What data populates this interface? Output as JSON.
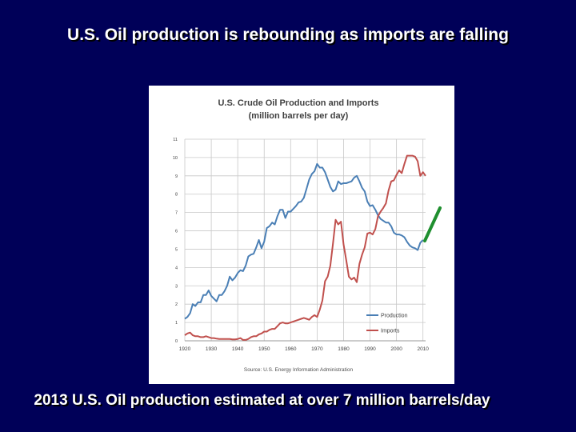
{
  "slide": {
    "title": "U.S.  Oil production is rebounding as imports are falling",
    "caption": "2013 U.S.  Oil production estimated at over 7 million barrels/day",
    "annotation_color": "#1f8f2f"
  },
  "chart_data": {
    "type": "line",
    "title": "U.S. Crude Oil Production and Imports",
    "subtitle": "(million barrels per day)",
    "source": "Source: U.S. Energy Information Administration",
    "xlim": [
      1920,
      2011
    ],
    "ylim": [
      0,
      11
    ],
    "xticks": [
      1920,
      1930,
      1940,
      1950,
      1960,
      1970,
      1980,
      1990,
      2000,
      2010
    ],
    "yticks": [
      0,
      1,
      2,
      3,
      4,
      5,
      6,
      7,
      8,
      9,
      10,
      11
    ],
    "grid": true,
    "legend_position": "bottom-right",
    "series": [
      {
        "name": "Production",
        "color": "#4a7fb5",
        "points": [
          [
            1920,
            1.2
          ],
          [
            1921,
            1.3
          ],
          [
            1922,
            1.5
          ],
          [
            1923,
            2.0
          ],
          [
            1924,
            1.9
          ],
          [
            1925,
            2.1
          ],
          [
            1926,
            2.1
          ],
          [
            1927,
            2.5
          ],
          [
            1928,
            2.5
          ],
          [
            1929,
            2.75
          ],
          [
            1930,
            2.45
          ],
          [
            1931,
            2.3
          ],
          [
            1932,
            2.15
          ],
          [
            1933,
            2.5
          ],
          [
            1934,
            2.5
          ],
          [
            1935,
            2.7
          ],
          [
            1936,
            3.0
          ],
          [
            1937,
            3.5
          ],
          [
            1938,
            3.3
          ],
          [
            1939,
            3.45
          ],
          [
            1940,
            3.7
          ],
          [
            1941,
            3.85
          ],
          [
            1942,
            3.8
          ],
          [
            1943,
            4.1
          ],
          [
            1944,
            4.6
          ],
          [
            1945,
            4.7
          ],
          [
            1946,
            4.75
          ],
          [
            1947,
            5.1
          ],
          [
            1948,
            5.5
          ],
          [
            1949,
            5.05
          ],
          [
            1950,
            5.4
          ],
          [
            1951,
            6.15
          ],
          [
            1952,
            6.25
          ],
          [
            1953,
            6.45
          ],
          [
            1954,
            6.35
          ],
          [
            1955,
            6.8
          ],
          [
            1956,
            7.15
          ],
          [
            1957,
            7.15
          ],
          [
            1958,
            6.7
          ],
          [
            1959,
            7.05
          ],
          [
            1960,
            7.05
          ],
          [
            1961,
            7.2
          ],
          [
            1962,
            7.35
          ],
          [
            1963,
            7.55
          ],
          [
            1964,
            7.6
          ],
          [
            1965,
            7.8
          ],
          [
            1966,
            8.3
          ],
          [
            1967,
            8.8
          ],
          [
            1968,
            9.1
          ],
          [
            1969,
            9.25
          ],
          [
            1970,
            9.65
          ],
          [
            1971,
            9.45
          ],
          [
            1972,
            9.45
          ],
          [
            1973,
            9.2
          ],
          [
            1974,
            8.8
          ],
          [
            1975,
            8.4
          ],
          [
            1976,
            8.15
          ],
          [
            1977,
            8.25
          ],
          [
            1978,
            8.7
          ],
          [
            1979,
            8.55
          ],
          [
            1980,
            8.6
          ],
          [
            1981,
            8.6
          ],
          [
            1982,
            8.65
          ],
          [
            1983,
            8.7
          ],
          [
            1984,
            8.9
          ],
          [
            1985,
            9.0
          ],
          [
            1986,
            8.7
          ],
          [
            1987,
            8.35
          ],
          [
            1988,
            8.15
          ],
          [
            1989,
            7.6
          ],
          [
            1990,
            7.35
          ],
          [
            1991,
            7.4
          ],
          [
            1992,
            7.15
          ],
          [
            1993,
            6.85
          ],
          [
            1994,
            6.65
          ],
          [
            1995,
            6.55
          ],
          [
            1996,
            6.45
          ],
          [
            1997,
            6.45
          ],
          [
            1998,
            6.25
          ],
          [
            1999,
            5.9
          ],
          [
            2000,
            5.8
          ],
          [
            2001,
            5.8
          ],
          [
            2002,
            5.75
          ],
          [
            2003,
            5.65
          ],
          [
            2004,
            5.4
          ],
          [
            2005,
            5.2
          ],
          [
            2006,
            5.1
          ],
          [
            2007,
            5.05
          ],
          [
            2008,
            4.95
          ],
          [
            2009,
            5.35
          ],
          [
            2010,
            5.5
          ]
        ]
      },
      {
        "name": "Imports",
        "color": "#c0504d",
        "points": [
          [
            1920,
            0.3
          ],
          [
            1921,
            0.4
          ],
          [
            1922,
            0.45
          ],
          [
            1923,
            0.3
          ],
          [
            1924,
            0.25
          ],
          [
            1925,
            0.25
          ],
          [
            1926,
            0.2
          ],
          [
            1927,
            0.2
          ],
          [
            1928,
            0.25
          ],
          [
            1929,
            0.2
          ],
          [
            1930,
            0.15
          ],
          [
            1931,
            0.15
          ],
          [
            1932,
            0.12
          ],
          [
            1933,
            0.1
          ],
          [
            1934,
            0.1
          ],
          [
            1935,
            0.1
          ],
          [
            1936,
            0.1
          ],
          [
            1937,
            0.1
          ],
          [
            1938,
            0.08
          ],
          [
            1939,
            0.08
          ],
          [
            1940,
            0.1
          ],
          [
            1941,
            0.15
          ],
          [
            1942,
            0.05
          ],
          [
            1943,
            0.05
          ],
          [
            1944,
            0.1
          ],
          [
            1945,
            0.2
          ],
          [
            1946,
            0.25
          ],
          [
            1947,
            0.25
          ],
          [
            1948,
            0.35
          ],
          [
            1949,
            0.4
          ],
          [
            1950,
            0.5
          ],
          [
            1951,
            0.5
          ],
          [
            1952,
            0.6
          ],
          [
            1953,
            0.65
          ],
          [
            1954,
            0.65
          ],
          [
            1955,
            0.8
          ],
          [
            1956,
            0.95
          ],
          [
            1957,
            1.0
          ],
          [
            1958,
            0.95
          ],
          [
            1959,
            0.95
          ],
          [
            1960,
            1.0
          ],
          [
            1961,
            1.05
          ],
          [
            1962,
            1.1
          ],
          [
            1963,
            1.15
          ],
          [
            1964,
            1.2
          ],
          [
            1965,
            1.25
          ],
          [
            1966,
            1.2
          ],
          [
            1967,
            1.15
          ],
          [
            1968,
            1.3
          ],
          [
            1969,
            1.4
          ],
          [
            1970,
            1.3
          ],
          [
            1971,
            1.7
          ],
          [
            1972,
            2.2
          ],
          [
            1973,
            3.25
          ],
          [
            1974,
            3.5
          ],
          [
            1975,
            4.1
          ],
          [
            1976,
            5.3
          ],
          [
            1977,
            6.6
          ],
          [
            1978,
            6.35
          ],
          [
            1979,
            6.5
          ],
          [
            1980,
            5.25
          ],
          [
            1981,
            4.4
          ],
          [
            1982,
            3.5
          ],
          [
            1983,
            3.35
          ],
          [
            1984,
            3.45
          ],
          [
            1985,
            3.2
          ],
          [
            1986,
            4.2
          ],
          [
            1987,
            4.7
          ],
          [
            1988,
            5.1
          ],
          [
            1989,
            5.85
          ],
          [
            1990,
            5.9
          ],
          [
            1991,
            5.8
          ],
          [
            1992,
            6.1
          ],
          [
            1993,
            6.8
          ],
          [
            1994,
            7.05
          ],
          [
            1995,
            7.25
          ],
          [
            1996,
            7.5
          ],
          [
            1997,
            8.2
          ],
          [
            1998,
            8.7
          ],
          [
            1999,
            8.75
          ],
          [
            2000,
            9.05
          ],
          [
            2001,
            9.3
          ],
          [
            2002,
            9.15
          ],
          [
            2003,
            9.65
          ],
          [
            2004,
            10.1
          ],
          [
            2005,
            10.1
          ],
          [
            2006,
            10.1
          ],
          [
            2007,
            10.05
          ],
          [
            2008,
            9.8
          ],
          [
            2009,
            9.0
          ],
          [
            2010,
            9.2
          ],
          [
            2011,
            9.0
          ]
        ]
      }
    ]
  }
}
